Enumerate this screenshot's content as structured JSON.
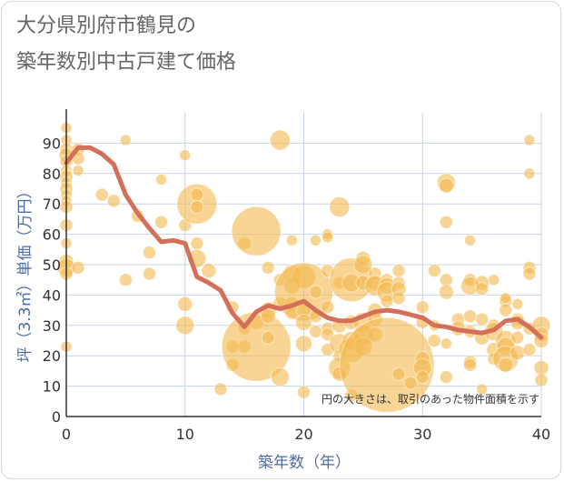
{
  "title_line1": "大分県別府市鶴見の",
  "title_line2": "築年数別中古戸建て価格",
  "note": "円の大きさは、取引のあった物件面積を示す",
  "colors": {
    "bubble": "#f3b94e",
    "line": "#d4705a",
    "grid": "#c8d4e6",
    "axis_label": "#4d6ea3"
  },
  "chart_data": {
    "type": "scatter",
    "xlabel": "築年数（年）",
    "ylabel": "坪（3.3㎡）単価（万円）",
    "xlim": [
      0,
      40
    ],
    "ylim": [
      0,
      100
    ],
    "x_ticks": [
      0,
      10,
      20,
      30,
      40
    ],
    "y_ticks": [
      0,
      10,
      20,
      30,
      40,
      50,
      60,
      70,
      80,
      90
    ],
    "grid": true,
    "series": [
      {
        "kind": "bubble",
        "points": [
          {
            "x": 0,
            "y": 95,
            "s": 6
          },
          {
            "x": 0,
            "y": 91,
            "s": 6
          },
          {
            "x": 0,
            "y": 88,
            "s": 7
          },
          {
            "x": 0,
            "y": 86,
            "s": 8
          },
          {
            "x": 0,
            "y": 84,
            "s": 7
          },
          {
            "x": 0,
            "y": 81,
            "s": 6
          },
          {
            "x": 0,
            "y": 79,
            "s": 7
          },
          {
            "x": 0,
            "y": 77,
            "s": 6
          },
          {
            "x": 0,
            "y": 75,
            "s": 7
          },
          {
            "x": 0,
            "y": 73,
            "s": 6
          },
          {
            "x": 0,
            "y": 71,
            "s": 6
          },
          {
            "x": 0,
            "y": 69,
            "s": 7
          },
          {
            "x": 0,
            "y": 63,
            "s": 7
          },
          {
            "x": 0,
            "y": 57,
            "s": 6
          },
          {
            "x": 0,
            "y": 51,
            "s": 8
          },
          {
            "x": 0,
            "y": 49,
            "s": 10
          },
          {
            "x": 0,
            "y": 47,
            "s": 7
          },
          {
            "x": 0,
            "y": 23,
            "s": 6
          },
          {
            "x": 1,
            "y": 88,
            "s": 7
          },
          {
            "x": 1,
            "y": 85,
            "s": 7
          },
          {
            "x": 1,
            "y": 81,
            "s": 6
          },
          {
            "x": 1,
            "y": 49,
            "s": 7
          },
          {
            "x": 3,
            "y": 73,
            "s": 7
          },
          {
            "x": 4,
            "y": 71,
            "s": 7
          },
          {
            "x": 5,
            "y": 91,
            "s": 6
          },
          {
            "x": 5,
            "y": 45,
            "s": 7
          },
          {
            "x": 6,
            "y": 66,
            "s": 7
          },
          {
            "x": 7,
            "y": 54,
            "s": 7
          },
          {
            "x": 7,
            "y": 47,
            "s": 7
          },
          {
            "x": 8,
            "y": 78,
            "s": 6
          },
          {
            "x": 8,
            "y": 64,
            "s": 7
          },
          {
            "x": 10,
            "y": 86,
            "s": 6
          },
          {
            "x": 10,
            "y": 63,
            "s": 7
          },
          {
            "x": 10,
            "y": 37,
            "s": 8
          },
          {
            "x": 10,
            "y": 30,
            "s": 10
          },
          {
            "x": 11,
            "y": 70,
            "s": 22
          },
          {
            "x": 11,
            "y": 73,
            "s": 7
          },
          {
            "x": 11,
            "y": 69,
            "s": 7
          },
          {
            "x": 11,
            "y": 57,
            "s": 7
          },
          {
            "x": 11,
            "y": 52,
            "s": 10
          },
          {
            "x": 12,
            "y": 48,
            "s": 8
          },
          {
            "x": 13,
            "y": 9,
            "s": 7
          },
          {
            "x": 14,
            "y": 36,
            "s": 7
          },
          {
            "x": 14,
            "y": 23,
            "s": 7
          },
          {
            "x": 14,
            "y": 17,
            "s": 7
          },
          {
            "x": 15,
            "y": 57,
            "s": 7
          },
          {
            "x": 15,
            "y": 29,
            "s": 7
          },
          {
            "x": 15,
            "y": 23,
            "s": 7
          },
          {
            "x": 16,
            "y": 61,
            "s": 27
          },
          {
            "x": 16,
            "y": 31,
            "s": 8
          },
          {
            "x": 16,
            "y": 23,
            "s": 38
          },
          {
            "x": 17,
            "y": 49,
            "s": 7
          },
          {
            "x": 17,
            "y": 35,
            "s": 9
          },
          {
            "x": 17,
            "y": 33,
            "s": 8
          },
          {
            "x": 17,
            "y": 26,
            "s": 7
          },
          {
            "x": 18,
            "y": 91,
            "s": 11
          },
          {
            "x": 18,
            "y": 45,
            "s": 7
          },
          {
            "x": 18,
            "y": 37,
            "s": 8
          },
          {
            "x": 18,
            "y": 13,
            "s": 10
          },
          {
            "x": 19,
            "y": 58,
            "s": 6
          },
          {
            "x": 19,
            "y": 47,
            "s": 10
          },
          {
            "x": 19,
            "y": 43,
            "s": 9
          },
          {
            "x": 19,
            "y": 37,
            "s": 8
          },
          {
            "x": 19,
            "y": 34,
            "s": 7
          },
          {
            "x": 20,
            "y": 46,
            "s": 13
          },
          {
            "x": 20,
            "y": 41,
            "s": 32
          },
          {
            "x": 20,
            "y": 35,
            "s": 8
          },
          {
            "x": 20,
            "y": 31,
            "s": 9
          },
          {
            "x": 20,
            "y": 24,
            "s": 9
          },
          {
            "x": 20,
            "y": 8,
            "s": 7
          },
          {
            "x": 21,
            "y": 58,
            "s": 6
          },
          {
            "x": 21,
            "y": 41,
            "s": 7
          },
          {
            "x": 21,
            "y": 33,
            "s": 7
          },
          {
            "x": 21,
            "y": 28,
            "s": 7
          },
          {
            "x": 22,
            "y": 60,
            "s": 6
          },
          {
            "x": 22,
            "y": 59,
            "s": 6
          },
          {
            "x": 22,
            "y": 48,
            "s": 7
          },
          {
            "x": 22,
            "y": 36,
            "s": 7
          },
          {
            "x": 22,
            "y": 29,
            "s": 7
          },
          {
            "x": 22,
            "y": 27,
            "s": 7
          },
          {
            "x": 22,
            "y": 22,
            "s": 7
          },
          {
            "x": 23,
            "y": 69,
            "s": 11
          },
          {
            "x": 23,
            "y": 44,
            "s": 7
          },
          {
            "x": 23,
            "y": 30,
            "s": 8
          },
          {
            "x": 23,
            "y": 24,
            "s": 11
          },
          {
            "x": 23,
            "y": 20,
            "s": 7
          },
          {
            "x": 23,
            "y": 16,
            "s": 12
          },
          {
            "x": 23,
            "y": 14,
            "s": 8
          },
          {
            "x": 24,
            "y": 45,
            "s": 24
          },
          {
            "x": 24,
            "y": 44,
            "s": 10
          },
          {
            "x": 24,
            "y": 31,
            "s": 8
          },
          {
            "x": 24,
            "y": 25,
            "s": 10
          },
          {
            "x": 24,
            "y": 22,
            "s": 14
          },
          {
            "x": 24,
            "y": 7,
            "s": 7
          },
          {
            "x": 25,
            "y": 52,
            "s": 8
          },
          {
            "x": 25,
            "y": 50,
            "s": 10
          },
          {
            "x": 25,
            "y": 44,
            "s": 8
          },
          {
            "x": 25,
            "y": 31,
            "s": 11
          },
          {
            "x": 25,
            "y": 27,
            "s": 11
          },
          {
            "x": 25,
            "y": 23,
            "s": 10
          },
          {
            "x": 26,
            "y": 47,
            "s": 7
          },
          {
            "x": 26,
            "y": 44,
            "s": 9
          },
          {
            "x": 26,
            "y": 43,
            "s": 11
          },
          {
            "x": 26,
            "y": 35,
            "s": 8
          },
          {
            "x": 26,
            "y": 32,
            "s": 8
          },
          {
            "x": 26,
            "y": 27,
            "s": 8
          },
          {
            "x": 27,
            "y": 17,
            "s": 52
          },
          {
            "x": 27,
            "y": 45,
            "s": 7
          },
          {
            "x": 27,
            "y": 43,
            "s": 9
          },
          {
            "x": 27,
            "y": 41,
            "s": 11
          },
          {
            "x": 27,
            "y": 38,
            "s": 7
          },
          {
            "x": 28,
            "y": 48,
            "s": 7
          },
          {
            "x": 28,
            "y": 44,
            "s": 7
          },
          {
            "x": 28,
            "y": 42,
            "s": 8
          },
          {
            "x": 28,
            "y": 39,
            "s": 7
          },
          {
            "x": 28,
            "y": 14,
            "s": 7
          },
          {
            "x": 29,
            "y": 11,
            "s": 7
          },
          {
            "x": 30,
            "y": 36,
            "s": 7
          },
          {
            "x": 30,
            "y": 31,
            "s": 7
          },
          {
            "x": 30,
            "y": 19,
            "s": 8
          },
          {
            "x": 30,
            "y": 16,
            "s": 10
          },
          {
            "x": 30,
            "y": 13,
            "s": 7
          },
          {
            "x": 31,
            "y": 48,
            "s": 7
          },
          {
            "x": 31,
            "y": 30,
            "s": 6
          },
          {
            "x": 31,
            "y": 25,
            "s": 7
          },
          {
            "x": 32,
            "y": 77,
            "s": 10
          },
          {
            "x": 32,
            "y": 76,
            "s": 8
          },
          {
            "x": 32,
            "y": 64,
            "s": 7
          },
          {
            "x": 32,
            "y": 45,
            "s": 7
          },
          {
            "x": 32,
            "y": 41,
            "s": 8
          },
          {
            "x": 32,
            "y": 24,
            "s": 6
          },
          {
            "x": 32,
            "y": 13,
            "s": 7
          },
          {
            "x": 33,
            "y": 32,
            "s": 7
          },
          {
            "x": 33,
            "y": 29,
            "s": 8
          },
          {
            "x": 34,
            "y": 58,
            "s": 6
          },
          {
            "x": 34,
            "y": 45,
            "s": 7
          },
          {
            "x": 34,
            "y": 43,
            "s": 10
          },
          {
            "x": 34,
            "y": 33,
            "s": 7
          },
          {
            "x": 34,
            "y": 28,
            "s": 7
          },
          {
            "x": 34,
            "y": 18,
            "s": 7
          },
          {
            "x": 34,
            "y": 17,
            "s": 7
          },
          {
            "x": 35,
            "y": 44,
            "s": 8
          },
          {
            "x": 35,
            "y": 42,
            "s": 7
          },
          {
            "x": 35,
            "y": 32,
            "s": 7
          },
          {
            "x": 35,
            "y": 26,
            "s": 8
          },
          {
            "x": 35,
            "y": 9,
            "s": 6
          },
          {
            "x": 36,
            "y": 45,
            "s": 6
          },
          {
            "x": 36,
            "y": 30,
            "s": 7
          },
          {
            "x": 36,
            "y": 28,
            "s": 10
          },
          {
            "x": 36,
            "y": 22,
            "s": 8
          },
          {
            "x": 36,
            "y": 19,
            "s": 7
          },
          {
            "x": 37,
            "y": 38,
            "s": 7
          },
          {
            "x": 37,
            "y": 39,
            "s": 6
          },
          {
            "x": 37,
            "y": 35,
            "s": 7
          },
          {
            "x": 37,
            "y": 25,
            "s": 11
          },
          {
            "x": 37,
            "y": 23,
            "s": 10
          },
          {
            "x": 37,
            "y": 19,
            "s": 14
          },
          {
            "x": 37,
            "y": 17,
            "s": 8
          },
          {
            "x": 38,
            "y": 37,
            "s": 6
          },
          {
            "x": 38,
            "y": 32,
            "s": 7
          },
          {
            "x": 38,
            "y": 31,
            "s": 8
          },
          {
            "x": 38,
            "y": 26,
            "s": 7
          },
          {
            "x": 38,
            "y": 21,
            "s": 8
          },
          {
            "x": 39,
            "y": 91,
            "s": 6
          },
          {
            "x": 39,
            "y": 80,
            "s": 6
          },
          {
            "x": 39,
            "y": 49,
            "s": 7
          },
          {
            "x": 39,
            "y": 47,
            "s": 7
          },
          {
            "x": 39,
            "y": 29,
            "s": 7
          },
          {
            "x": 39,
            "y": 22,
            "s": 7
          },
          {
            "x": 40,
            "y": 30,
            "s": 10
          },
          {
            "x": 40,
            "y": 27,
            "s": 8
          },
          {
            "x": 40,
            "y": 25,
            "s": 8
          },
          {
            "x": 40,
            "y": 16,
            "s": 8
          },
          {
            "x": 40,
            "y": 12,
            "s": 7
          }
        ]
      },
      {
        "kind": "line",
        "x": [
          0,
          1,
          2,
          3,
          4,
          5,
          6,
          7,
          8,
          9,
          10,
          11,
          12,
          13,
          14,
          15,
          16,
          17,
          18,
          19,
          20,
          21,
          22,
          23,
          24,
          25,
          26,
          27,
          28,
          29,
          30,
          31,
          32,
          33,
          34,
          35,
          36,
          37,
          38,
          39,
          40
        ],
        "values": [
          83.5,
          88.5,
          88.5,
          86.5,
          83,
          73,
          67,
          62,
          57.5,
          58,
          57,
          46,
          44,
          41.5,
          34,
          29.5,
          34.5,
          36.5,
          35.5,
          36.5,
          38,
          35,
          32.5,
          31.5,
          31.5,
          33,
          34.5,
          35,
          34.5,
          33.5,
          32.5,
          30,
          29.5,
          28.5,
          28,
          27.5,
          28.5,
          31.5,
          32,
          29.5,
          26
        ]
      }
    ]
  }
}
